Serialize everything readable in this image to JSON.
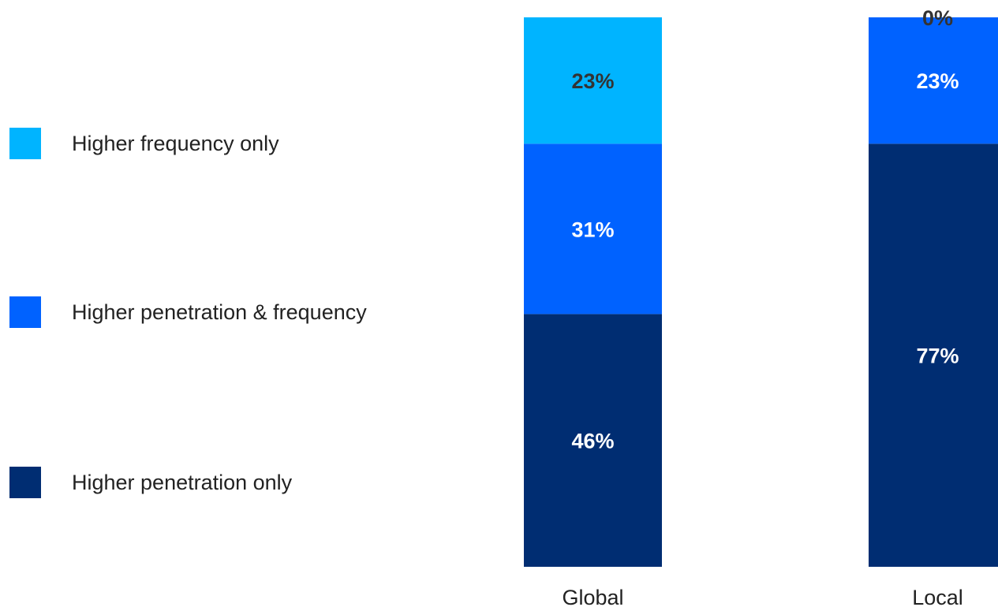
{
  "chart_data": {
    "type": "bar",
    "stacked": true,
    "orientation": "vertical",
    "categories": [
      "Global",
      "Local"
    ],
    "series": [
      {
        "name": "Higher penetration only",
        "values": [
          46,
          77
        ],
        "color": "#002d72",
        "label_color": "#ffffff"
      },
      {
        "name": "Higher penetration & frequency",
        "values": [
          31,
          23
        ],
        "color": "#0062ff",
        "label_color": "#ffffff"
      },
      {
        "name": "Higher frequency only",
        "values": [
          23,
          0
        ],
        "color": "#00b4ff",
        "label_color": "#333333"
      }
    ],
    "value_suffix": "%",
    "ylim": [
      0,
      100
    ],
    "grid": false,
    "legend_placement": "left"
  }
}
